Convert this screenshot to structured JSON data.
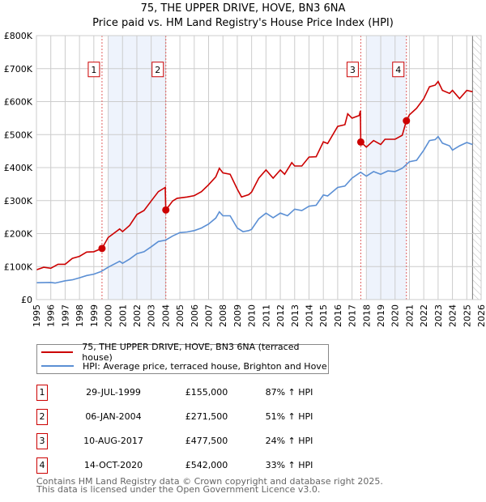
{
  "chart_data": {
    "type": "line",
    "title": "75, THE UPPER DRIVE, HOVE, BN3 6NA",
    "subtitle": "Price paid vs. HM Land Registry's House Price Index (HPI)",
    "xlim": [
      1995,
      2026
    ],
    "ylim": [
      0,
      800000
    ],
    "grid": true,
    "legend_placement": "below",
    "y_ticks": [
      {
        "v": 0,
        "label": "£0"
      },
      {
        "v": 100000,
        "label": "£100K"
      },
      {
        "v": 200000,
        "label": "£200K"
      },
      {
        "v": 300000,
        "label": "£300K"
      },
      {
        "v": 400000,
        "label": "£400K"
      },
      {
        "v": 500000,
        "label": "£500K"
      },
      {
        "v": 600000,
        "label": "£600K"
      },
      {
        "v": 700000,
        "label": "£700K"
      },
      {
        "v": 800000,
        "label": "£800K"
      }
    ],
    "x_ticks": [
      "1995",
      "1996",
      "1997",
      "1998",
      "1999",
      "2000",
      "2001",
      "2002",
      "2003",
      "2004",
      "2005",
      "2006",
      "2007",
      "2008",
      "2009",
      "2010",
      "2011",
      "2012",
      "2013",
      "2014",
      "2015",
      "2016",
      "2017",
      "2018",
      "2019",
      "2020",
      "2021",
      "2022",
      "2023",
      "2024",
      "2025",
      "2026"
    ],
    "colors": {
      "property": "#cc0000",
      "hpi": "#5b8fd4",
      "shade": "#eef3fc"
    },
    "shaded_ranges": [
      [
        2000.0,
        2004.02
      ],
      [
        2018.0,
        2020.79
      ]
    ],
    "forecast_hatch_from": 2025.4,
    "series": [
      {
        "name": "75, THE UPPER DRIVE, HOVE, BN3 6NA (terraced house)",
        "color": "#cc0000",
        "points": [
          [
            1995,
            90
          ],
          [
            1995.5,
            98
          ],
          [
            1996,
            95
          ],
          [
            1996.5,
            107
          ],
          [
            1997,
            107
          ],
          [
            1997.5,
            125
          ],
          [
            1998,
            131
          ],
          [
            1998.5,
            144
          ],
          [
            1999,
            145
          ],
          [
            1999.57,
            155
          ],
          [
            2000,
            188
          ],
          [
            2000.8,
            214
          ],
          [
            2001,
            206
          ],
          [
            2001.5,
            225
          ],
          [
            2002,
            258
          ],
          [
            2002.5,
            270
          ],
          [
            2003,
            299
          ],
          [
            2003.5,
            327
          ],
          [
            2003.98,
            340
          ],
          [
            2004.02,
            271.5
          ],
          [
            2004.5,
            299
          ],
          [
            2004.8,
            307
          ],
          [
            2005.5,
            311
          ],
          [
            2006,
            315
          ],
          [
            2006.5,
            327
          ],
          [
            2007,
            348
          ],
          [
            2007.5,
            372
          ],
          [
            2007.75,
            398
          ],
          [
            2008,
            384
          ],
          [
            2008.5,
            380
          ],
          [
            2009,
            335
          ],
          [
            2009.3,
            311
          ],
          [
            2009.8,
            318
          ],
          [
            2010,
            326
          ],
          [
            2010.5,
            368
          ],
          [
            2011,
            393
          ],
          [
            2011.5,
            368
          ],
          [
            2012,
            393
          ],
          [
            2012.3,
            380
          ],
          [
            2012.8,
            415
          ],
          [
            2013,
            405
          ],
          [
            2013.5,
            405
          ],
          [
            2014,
            432
          ],
          [
            2014.5,
            433
          ],
          [
            2015,
            478
          ],
          [
            2015.3,
            473
          ],
          [
            2016,
            525
          ],
          [
            2016.5,
            530
          ],
          [
            2016.7,
            563
          ],
          [
            2017,
            550
          ],
          [
            2017.5,
            558
          ],
          [
            2017.58,
            572
          ],
          [
            2017.61,
            477.5
          ],
          [
            2018,
            462
          ],
          [
            2018.5,
            482
          ],
          [
            2019,
            470
          ],
          [
            2019.3,
            486
          ],
          [
            2020,
            486
          ],
          [
            2020.5,
            498
          ],
          [
            2020.79,
            542
          ],
          [
            2021,
            560
          ],
          [
            2021.5,
            580
          ],
          [
            2022,
            609
          ],
          [
            2022.4,
            645
          ],
          [
            2022.8,
            650
          ],
          [
            2023,
            661
          ],
          [
            2023.3,
            634
          ],
          [
            2023.8,
            625
          ],
          [
            2024,
            634
          ],
          [
            2024.5,
            609
          ],
          [
            2025,
            634
          ],
          [
            2025.4,
            630
          ]
        ]
      },
      {
        "name": "HPI: Average price, terraced house, Brighton and Hove",
        "color": "#5b8fd4",
        "points": [
          [
            1995,
            51
          ],
          [
            1996,
            52
          ],
          [
            1996.3,
            50
          ],
          [
            1997,
            57
          ],
          [
            1997.5,
            60
          ],
          [
            1998,
            66
          ],
          [
            1998.5,
            73
          ],
          [
            1999,
            77
          ],
          [
            1999.5,
            85
          ],
          [
            2000,
            98
          ],
          [
            2000.8,
            116
          ],
          [
            2001,
            110
          ],
          [
            2001.5,
            123
          ],
          [
            2002,
            139
          ],
          [
            2002.5,
            145
          ],
          [
            2003,
            160
          ],
          [
            2003.5,
            176
          ],
          [
            2004,
            180
          ],
          [
            2004.5,
            193
          ],
          [
            2005,
            203
          ],
          [
            2005.5,
            205
          ],
          [
            2006,
            209
          ],
          [
            2006.5,
            217
          ],
          [
            2007,
            229
          ],
          [
            2007.5,
            247
          ],
          [
            2007.75,
            266
          ],
          [
            2008,
            254
          ],
          [
            2008.5,
            254
          ],
          [
            2009,
            217
          ],
          [
            2009.4,
            206
          ],
          [
            2009.8,
            209
          ],
          [
            2010,
            213
          ],
          [
            2010.5,
            245
          ],
          [
            2011,
            262
          ],
          [
            2011.5,
            248
          ],
          [
            2012,
            262
          ],
          [
            2012.5,
            254
          ],
          [
            2013,
            274
          ],
          [
            2013.5,
            270
          ],
          [
            2014,
            283
          ],
          [
            2014.5,
            286
          ],
          [
            2015,
            317
          ],
          [
            2015.3,
            314
          ],
          [
            2016,
            340
          ],
          [
            2016.5,
            344
          ],
          [
            2017,
            368
          ],
          [
            2017.6,
            386
          ],
          [
            2018,
            374
          ],
          [
            2018.5,
            388
          ],
          [
            2019,
            380
          ],
          [
            2019.5,
            390
          ],
          [
            2020,
            388
          ],
          [
            2020.5,
            398
          ],
          [
            2021,
            418
          ],
          [
            2021.5,
            422
          ],
          [
            2022,
            453
          ],
          [
            2022.4,
            482
          ],
          [
            2022.8,
            485
          ],
          [
            2023,
            494
          ],
          [
            2023.3,
            474
          ],
          [
            2023.8,
            466
          ],
          [
            2024,
            453
          ],
          [
            2024.5,
            466
          ],
          [
            2025,
            476
          ],
          [
            2025.4,
            470
          ]
        ]
      }
    ],
    "units_note": "series values in £K",
    "sales": [
      {
        "n": "1",
        "x": 1999.57,
        "price": 155,
        "date": "29-JUL-1999",
        "price_label": "£155,000",
        "hpi": "87% ↑ HPI"
      },
      {
        "n": "2",
        "x": 2004.02,
        "price": 271.5,
        "date": "06-JAN-2004",
        "price_label": "£271,500",
        "hpi": "51% ↑ HPI"
      },
      {
        "n": "3",
        "x": 2017.61,
        "price": 477.5,
        "date": "10-AUG-2017",
        "price_label": "£477,500",
        "hpi": "24% ↑ HPI"
      },
      {
        "n": "4",
        "x": 2020.79,
        "price": 542,
        "date": "14-OCT-2020",
        "price_label": "£542,000",
        "hpi": "33% ↑ HPI"
      }
    ]
  },
  "legend": {
    "property": "75, THE UPPER DRIVE, HOVE, BN3 6NA (terraced house)",
    "hpi": "HPI: Average price, terraced house, Brighton and Hove"
  },
  "footer": {
    "line1": "Contains HM Land Registry data © Crown copyright and database right 2025.",
    "line2": "This data is licensed under the Open Government Licence v3.0."
  }
}
